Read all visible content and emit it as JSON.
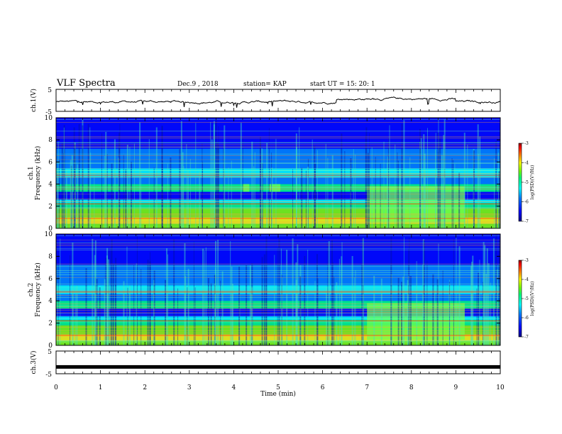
{
  "header": {
    "title": "VLF Spectra",
    "date": "Dec.9 , 2018",
    "station": "station= KAP",
    "start": "start UT = 15: 20: 1"
  },
  "axes": {
    "ch1_wave_label": "ch.1(V)",
    "ch1_spec_label1": "ch.1",
    "ch1_spec_label2": "Frequency (kHz)",
    "ch2_spec_label1": "ch.2",
    "ch2_spec_label2": "Frequency (kHz)",
    "ch3_wave_label": "ch.3(V)",
    "x_label": "Time (min)",
    "colorbar_label": "log(PSD)(V²/Hz)",
    "wave_ticks": [
      "5",
      "-5"
    ],
    "freq_ticks": [
      "0",
      "2",
      "4",
      "6",
      "8",
      "10"
    ],
    "time_ticks": [
      "0",
      "1",
      "2",
      "3",
      "4",
      "5",
      "6",
      "7",
      "8",
      "9",
      "10"
    ],
    "colorbar_ticks": [
      "-3",
      "-4",
      "-5",
      "-6",
      "-7"
    ]
  },
  "colors": {
    "colormap": [
      "#000080",
      "#0000ff",
      "#0080ff",
      "#00ffff",
      "#00ff80",
      "#80ff00",
      "#ffff00",
      "#ff8000",
      "#ff0000",
      "#800000"
    ]
  },
  "chart_data": {
    "type": "heatmap",
    "x_unit": "min",
    "x_range": [
      0,
      10
    ],
    "panels": [
      {
        "name": "ch.1(V)",
        "kind": "waveform",
        "ylim": [
          -5,
          5
        ]
      },
      {
        "name": "ch.1",
        "kind": "spectrogram",
        "ylabel": "Frequency (kHz)",
        "ylim": [
          0,
          10
        ],
        "clim": [
          -7,
          -3
        ],
        "features": [
          {
            "t": [
              4.2,
              4.35
            ],
            "f": [
              3.3,
              4.0
            ],
            "note": "enhanced band"
          },
          {
            "t": [
              4.8,
              5.05
            ],
            "f": [
              3.3,
              4.0
            ],
            "note": "enhanced band"
          },
          {
            "t": [
              7.0,
              9.2
            ],
            "f": [
              0.5,
              3.8
            ],
            "note": "broadband enhancement"
          }
        ]
      },
      {
        "name": "ch.2",
        "kind": "spectrogram",
        "ylabel": "Frequency (kHz)",
        "ylim": [
          0,
          10
        ],
        "clim": [
          -7,
          -3
        ],
        "features": [
          {
            "t": [
              7.0,
              9.2
            ],
            "f": [
              0.5,
              3.8
            ],
            "note": "broadband enhancement"
          }
        ]
      },
      {
        "name": "ch.3(V)",
        "kind": "waveform",
        "ylim": [
          -5,
          5
        ],
        "level": -2
      }
    ]
  }
}
